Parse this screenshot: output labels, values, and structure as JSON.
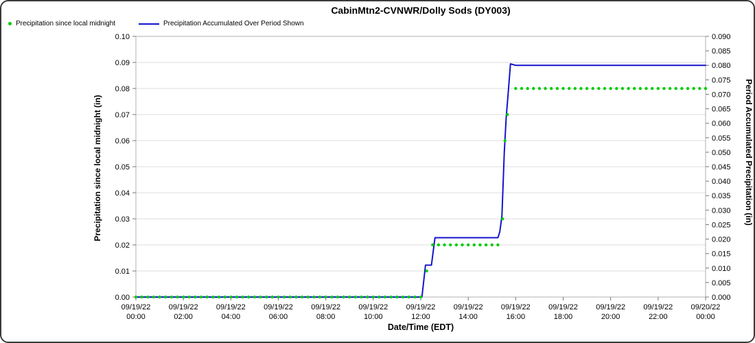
{
  "title": "CabinMtn2-CVNWR/Dolly Sods (DY003)",
  "legend": [
    {
      "label": "Precipitation since local midnight",
      "color": "#00CC00",
      "marker": "dot"
    },
    {
      "label": "Precipitation Accumulated Over Period Shown",
      "color": "#1414CC",
      "marker": "line"
    }
  ],
  "colors": {
    "frame_border": "#3A3A3A",
    "plot_border": "#B0B0B0",
    "grid": "#DCDCDC",
    "tick": "#777777",
    "background": "#FFFFFF",
    "green_series": "#00CC00",
    "blue_series": "#1414CC"
  },
  "chart_data": {
    "type": "line",
    "title": "CabinMtn2-CVNWR/Dolly Sods (DY003)",
    "grid": {
      "horizontal": true,
      "vertical": false,
      "color": "#DCDCDC"
    },
    "legend_position": "top-left",
    "x_axis": {
      "title": "Date/Time (EDT)",
      "range_hours": [
        0,
        24
      ],
      "tick_interval_hours": 2,
      "tick_labels": [
        {
          "date": "09/19/22",
          "time": "00:00"
        },
        {
          "date": "09/19/22",
          "time": "02:00"
        },
        {
          "date": "09/19/22",
          "time": "04:00"
        },
        {
          "date": "09/19/22",
          "time": "06:00"
        },
        {
          "date": "09/19/22",
          "time": "08:00"
        },
        {
          "date": "09/19/22",
          "time": "10:00"
        },
        {
          "date": "09/19/22",
          "time": "12:00"
        },
        {
          "date": "09/19/22",
          "time": "14:00"
        },
        {
          "date": "09/19/22",
          "time": "16:00"
        },
        {
          "date": "09/19/22",
          "time": "18:00"
        },
        {
          "date": "09/19/22",
          "time": "20:00"
        },
        {
          "date": "09/19/22",
          "time": "22:00"
        },
        {
          "date": "09/20/22",
          "time": "00:00"
        }
      ]
    },
    "y_axis_left": {
      "title": "Precipitation since local midnight (in)",
      "min": 0.0,
      "max": 0.1,
      "tick_step": 0.01,
      "tick_labels": [
        "0.00",
        "0.01",
        "0.02",
        "0.03",
        "0.04",
        "0.05",
        "0.06",
        "0.07",
        "0.08",
        "0.09",
        "0.10"
      ]
    },
    "y_axis_right": {
      "title": "Period Accumulated Precipitation (in)",
      "min": 0.0,
      "max": 0.09,
      "tick_step": 0.005,
      "tick_labels": [
        "0.000",
        "0.005",
        "0.010",
        "0.015",
        "0.020",
        "0.025",
        "0.030",
        "0.035",
        "0.040",
        "0.045",
        "0.050",
        "0.055",
        "0.060",
        "0.065",
        "0.070",
        "0.075",
        "0.080",
        "0.085",
        "0.090"
      ]
    },
    "series": [
      {
        "name": "Precipitation since local midnight",
        "axis": "left",
        "style": "scatter",
        "color": "#00CC00",
        "sample_interval_hours": 0.25,
        "segments": [
          {
            "t_start": 0.0,
            "t_end": 12.0,
            "step": 0.25,
            "value": 0.0
          },
          {
            "t_start": 12.25,
            "t_end": 12.25,
            "step": 0.25,
            "value": 0.01
          },
          {
            "t_start": 12.5,
            "t_end": 15.25,
            "step": 0.25,
            "value": 0.02
          },
          {
            "t_start": 15.45,
            "t_end": 15.45,
            "step": 0.25,
            "value": 0.03
          },
          {
            "t_start": 15.55,
            "t_end": 15.55,
            "step": 0.25,
            "value": 0.06
          },
          {
            "t_start": 15.65,
            "t_end": 15.65,
            "step": 0.25,
            "value": 0.07
          },
          {
            "t_start": 16.0,
            "t_end": 24.0,
            "step": 0.25,
            "value": 0.08
          }
        ]
      },
      {
        "name": "Precipitation Accumulated Over Period Shown",
        "axis": "right",
        "style": "line",
        "color": "#1414CC",
        "points": [
          [
            0.0,
            0.0
          ],
          [
            12.05,
            0.0
          ],
          [
            12.2,
            0.011
          ],
          [
            12.45,
            0.011
          ],
          [
            12.6,
            0.0205
          ],
          [
            15.25,
            0.0205
          ],
          [
            15.33,
            0.0225
          ],
          [
            15.42,
            0.028
          ],
          [
            15.52,
            0.05
          ],
          [
            15.6,
            0.062
          ],
          [
            15.68,
            0.07
          ],
          [
            15.78,
            0.0805
          ],
          [
            16.0,
            0.08
          ],
          [
            24.0,
            0.08
          ]
        ]
      }
    ]
  }
}
